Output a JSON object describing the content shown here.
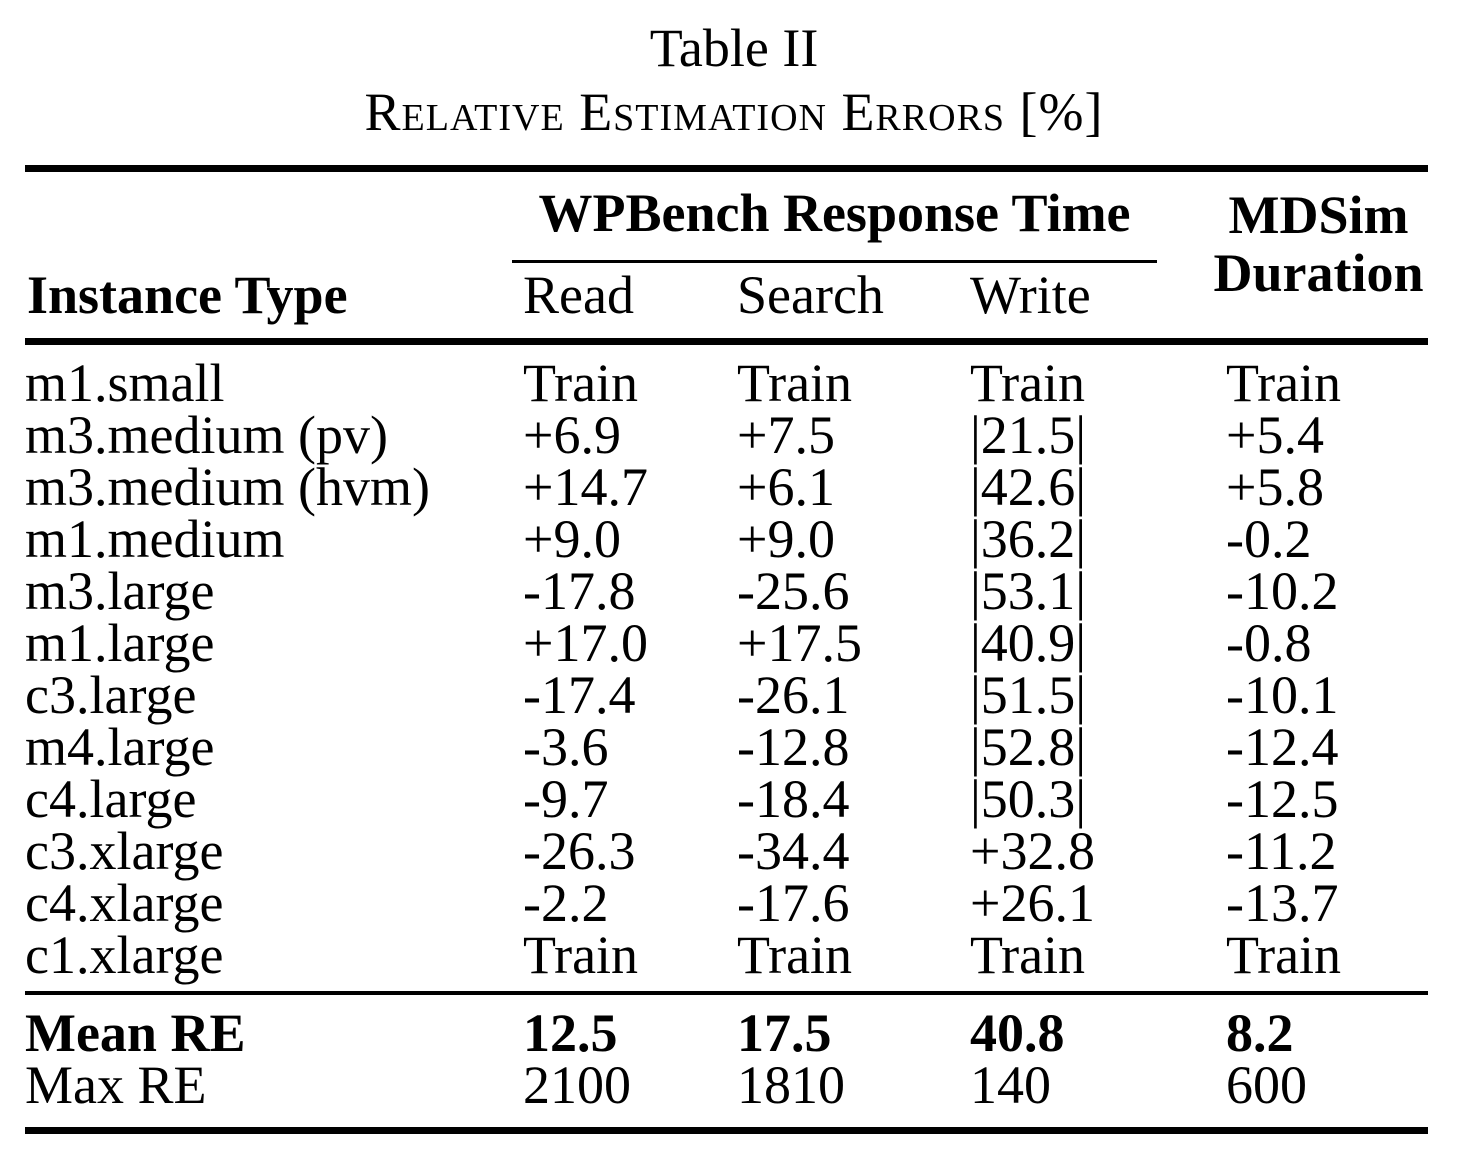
{
  "caption": {
    "number": "Table II",
    "title": "Relative Estimation Errors [%]"
  },
  "table": {
    "instance_header": "Instance Type",
    "group_header": "WPBench Response Time",
    "sub_columns": [
      "Read",
      "Search",
      "Write"
    ],
    "right_header": [
      "MDSim",
      "Duration"
    ],
    "columns": [
      "Instance Type",
      "Read",
      "Search",
      "Write",
      "MDSim Duration"
    ],
    "rows": [
      [
        "m1.small",
        "Train",
        "Train",
        "Train",
        "Train"
      ],
      [
        "m3.medium (pv)",
        "+6.9",
        "+7.5",
        "|21.5|",
        "+5.4"
      ],
      [
        "m3.medium (hvm)",
        "+14.7",
        "+6.1",
        "|42.6|",
        "+5.8"
      ],
      [
        "m1.medium",
        "+9.0",
        "+9.0",
        "|36.2|",
        "-0.2"
      ],
      [
        "m3.large",
        "-17.8",
        "-25.6",
        "|53.1|",
        "-10.2"
      ],
      [
        "m1.large",
        "+17.0",
        "+17.5",
        "|40.9|",
        "-0.8"
      ],
      [
        "c3.large",
        "-17.4",
        "-26.1",
        "|51.5|",
        "-10.1"
      ],
      [
        "m4.large",
        "-3.6",
        "-12.8",
        "|52.8|",
        "-12.4"
      ],
      [
        "c4.large",
        "-9.7",
        "-18.4",
        "|50.3|",
        "-12.5"
      ],
      [
        "c3.xlarge",
        "-26.3",
        "-34.4",
        "+32.8",
        "-11.2"
      ],
      [
        "c4.xlarge",
        "-2.2",
        "-17.6",
        "+26.1",
        "-13.7"
      ],
      [
        "c1.xlarge",
        "Train",
        "Train",
        "Train",
        "Train"
      ]
    ],
    "summary": [
      {
        "cells": [
          "Mean RE",
          "12.5",
          "17.5",
          "40.8",
          "8.2"
        ],
        "bold": true
      },
      {
        "cells": [
          "Max RE",
          "2100",
          "1810",
          "140",
          "600"
        ],
        "bold": false
      }
    ]
  },
  "colors": {
    "text": "#000000",
    "background": "#ffffff"
  }
}
